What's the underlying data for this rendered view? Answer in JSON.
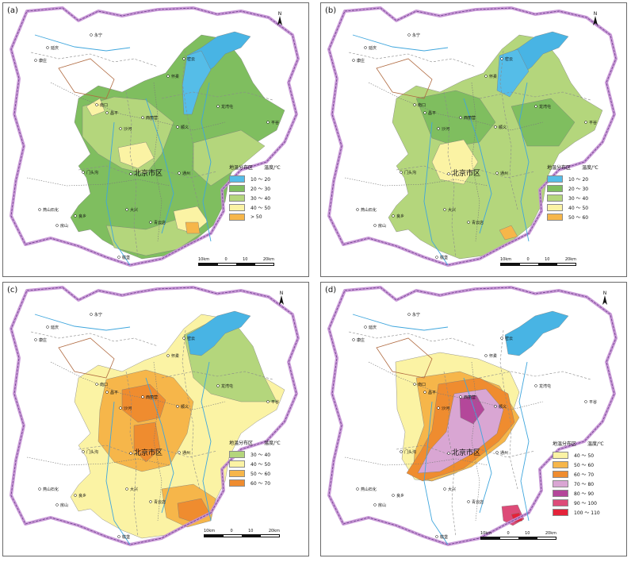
{
  "legend_title": "地温分布区",
  "legend_unit": "温度/℃",
  "scale_labels": [
    "10km",
    "0",
    "10",
    "20km"
  ],
  "north_icon": "north-arrow-icon",
  "colors": {
    "t10_20": "#55bde8",
    "t20_30": "#7fbe5f",
    "t30_40": "#b4d67c",
    "t40_50": "#fbf3a4",
    "t50_60": "#f6b64a",
    "t60_70": "#ef8c2f",
    "t70_80": "#d9a6d3",
    "t80_90": "#b4479a",
    "t90_100": "#dd4b78",
    "t100_110": "#e4233a",
    "gt50": "#f6b64a",
    "reservoir": "#48b4e4"
  },
  "place_names": [
    "延庆",
    "康庄",
    "永宁",
    "密云",
    "怀柔",
    "南口",
    "昌平",
    "西丽营",
    "平谷",
    "龙湾屯",
    "顺义",
    "沙河",
    "门头沟",
    "北京市区",
    "通州",
    "燕山石化",
    "良乡",
    "房山",
    "大兴",
    "青云店",
    "榆垡"
  ],
  "panels": [
    {
      "label": "(a)",
      "legend": [
        {
          "range": "10 ～ 20",
          "color": "#55bde8"
        },
        {
          "range": "20 ～ 30",
          "color": "#7fbe5f"
        },
        {
          "range": "30 ～ 40",
          "color": "#b4d67c"
        },
        {
          "range": "40 ～ 50",
          "color": "#fbf3a4"
        },
        {
          "range": "> 50",
          "color": "#f6b64a"
        }
      ]
    },
    {
      "label": "(b)",
      "legend": [
        {
          "range": "10 ～ 20",
          "color": "#55bde8"
        },
        {
          "range": "20 ～ 30",
          "color": "#7fbe5f"
        },
        {
          "range": "30 ～ 40",
          "color": "#b4d67c"
        },
        {
          "range": "40 ～ 50",
          "color": "#fbf3a4"
        },
        {
          "range": "50 ～ 60",
          "color": "#f6b64a"
        }
      ]
    },
    {
      "label": "(c)",
      "legend": [
        {
          "range": "30 ～ 40",
          "color": "#b4d67c"
        },
        {
          "range": "40 ～ 50",
          "color": "#fbf3a4"
        },
        {
          "range": "50 ～ 60",
          "color": "#f6b64a"
        },
        {
          "range": "60 ～ 70",
          "color": "#ef8c2f"
        }
      ]
    },
    {
      "label": "(d)",
      "legend": [
        {
          "range": "40 ～ 50",
          "color": "#fbf3a4"
        },
        {
          "range": "50 ～ 60",
          "color": "#f6b64a"
        },
        {
          "range": "60 ～ 70",
          "color": "#ef8c2f"
        },
        {
          "range": "70 ～ 80",
          "color": "#d9a6d3"
        },
        {
          "range": "80 ～ 90",
          "color": "#b4479a"
        },
        {
          "range": "90 ～ 100",
          "color": "#dd4b78"
        },
        {
          "range": "100 ～ 110",
          "color": "#e4233a"
        }
      ]
    }
  ]
}
